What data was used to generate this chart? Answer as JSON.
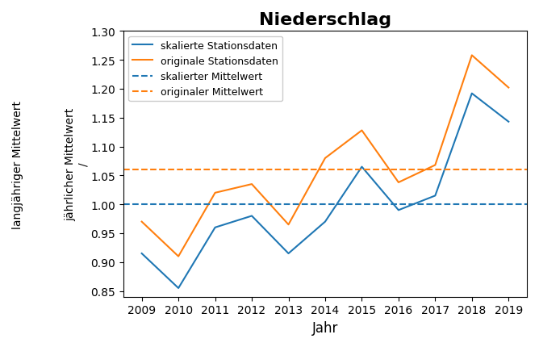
{
  "title": "Niederschlag",
  "xlabel": "Jahr",
  "ylabel1": "jährlicher Mittelwert",
  "ylabel_sep": "/",
  "ylabel2": "langjähriger Mittelwert",
  "years": [
    2009,
    2010,
    2011,
    2012,
    2013,
    2014,
    2015,
    2016,
    2017,
    2018,
    2019
  ],
  "skalierte": [
    0.915,
    0.855,
    0.96,
    0.98,
    0.915,
    0.97,
    1.065,
    0.99,
    1.015,
    1.192,
    1.143
  ],
  "originale": [
    0.97,
    0.91,
    1.02,
    1.035,
    0.965,
    1.08,
    1.128,
    1.038,
    1.068,
    1.258,
    1.202
  ],
  "skalierter_mittelwert": 1.0,
  "originaler_mittelwert": 1.06,
  "color_skaliert": "#1f77b4",
  "color_original": "#ff7f0e",
  "ylim": [
    0.84,
    1.3
  ],
  "xlim": [
    2008.5,
    2019.5
  ],
  "figsize": [
    6.68,
    4.31
  ],
  "dpi": 100
}
